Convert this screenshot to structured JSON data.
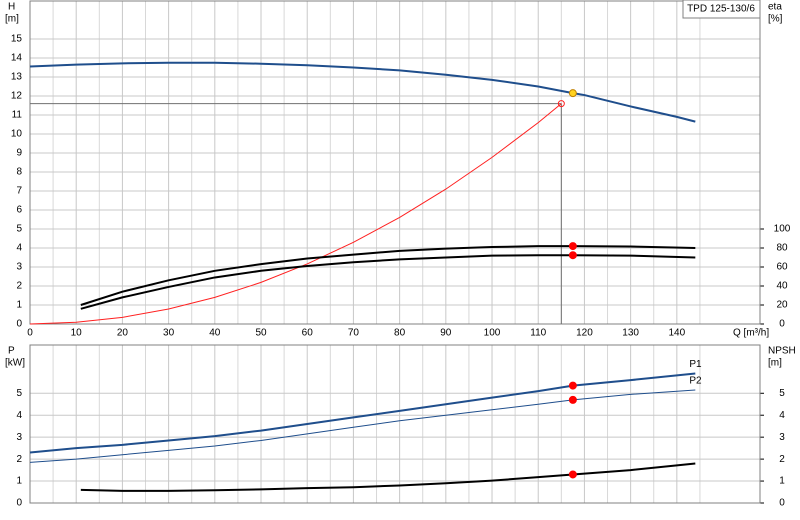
{
  "chart_data": [
    {
      "type": "line",
      "model": "TPD 125-130/6",
      "ylabel": "H",
      "yunit": "[m]",
      "y2label": "eta",
      "y2unit": "[%]",
      "xlabel": "Q [m³/h]",
      "xlim": [
        0,
        158
      ],
      "xticks": [
        0,
        10,
        20,
        30,
        40,
        50,
        60,
        70,
        80,
        90,
        100,
        110,
        120,
        130,
        140
      ],
      "show_xtick_labels": true,
      "ylim": [
        0,
        17
      ],
      "yticks": [
        0,
        1,
        2,
        3,
        4,
        5,
        6,
        7,
        8,
        9,
        10,
        11,
        12,
        13,
        14,
        15
      ],
      "y2lim": [
        0,
        340
      ],
      "y2ticks": [
        0,
        20,
        40,
        60,
        80,
        100
      ],
      "grid": true,
      "series": [
        {
          "color": "#1f4e8c",
          "style": "thick",
          "x": [
            0,
            10,
            20,
            30,
            40,
            50,
            60,
            70,
            80,
            90,
            100,
            110,
            117.5,
            120,
            130,
            140,
            144
          ],
          "values": [
            13.55,
            13.65,
            13.72,
            13.75,
            13.75,
            13.7,
            13.62,
            13.5,
            13.35,
            13.12,
            12.85,
            12.5,
            12.15,
            12.05,
            11.45,
            10.9,
            10.65
          ]
        },
        {
          "color": "#ff2020",
          "style": "thin",
          "x": [
            0,
            10,
            20,
            30,
            40,
            50,
            60,
            70,
            80,
            90,
            100,
            110,
            115
          ],
          "values": [
            0,
            0.09,
            0.35,
            0.79,
            1.4,
            2.19,
            3.16,
            4.3,
            5.61,
            7.1,
            8.77,
            10.6,
            11.6
          ]
        },
        {
          "color": "#000000",
          "style": "thick",
          "axis": "y2",
          "x": [
            11,
            20,
            30,
            40,
            50,
            60,
            70,
            80,
            90,
            100,
            110,
            117.5,
            130,
            144
          ],
          "values": [
            20,
            34,
            46,
            56,
            63,
            69,
            73,
            77,
            79.4,
            81,
            82,
            82,
            81.6,
            80
          ]
        },
        {
          "color": "#000000",
          "style": "thick",
          "axis": "y2",
          "x": [
            11,
            20,
            30,
            40,
            50,
            60,
            70,
            80,
            90,
            100,
            110,
            117.5,
            130,
            144
          ],
          "values": [
            16,
            28,
            39,
            49,
            56,
            61,
            65,
            68,
            70,
            72,
            72.4,
            72.4,
            72,
            70
          ]
        }
      ],
      "duty_point": {
        "x": 115,
        "y": 11.6
      },
      "markers": [
        {
          "x": 117.5,
          "y": 12.15,
          "color": "#ffd21f"
        },
        {
          "x": 117.5,
          "y": 82,
          "axis": "y2",
          "color": "#ff0000"
        },
        {
          "x": 117.5,
          "y": 72.4,
          "axis": "y2",
          "color": "#ff0000"
        }
      ]
    },
    {
      "type": "line",
      "ylabel": "P",
      "yunit": "[kW]",
      "y2label": "NPSH",
      "y2unit": "[m]",
      "xlim": [
        0,
        158
      ],
      "xticks": [
        0,
        10,
        20,
        30,
        40,
        50,
        60,
        70,
        80,
        90,
        100,
        110,
        120,
        130,
        140
      ],
      "show_xtick_labels": false,
      "ylim": [
        0,
        7.2
      ],
      "yticks": [
        0,
        1,
        2,
        3,
        4,
        5
      ],
      "y2lim": [
        0,
        7.2
      ],
      "y2ticks": [
        0,
        1,
        2,
        3,
        4,
        5
      ],
      "grid": true,
      "series": [
        {
          "name": "P1",
          "color": "#1f4e8c",
          "style": "thick",
          "x": [
            0,
            10,
            20,
            30,
            40,
            50,
            60,
            70,
            80,
            90,
            100,
            110,
            117.5,
            130,
            144
          ],
          "values": [
            2.3,
            2.5,
            2.65,
            2.85,
            3.05,
            3.3,
            3.6,
            3.9,
            4.2,
            4.5,
            4.8,
            5.1,
            5.35,
            5.6,
            5.9
          ]
        },
        {
          "name": "P2",
          "color": "#1f4e8c",
          "style": "thin",
          "x": [
            0,
            10,
            20,
            30,
            40,
            50,
            60,
            70,
            80,
            90,
            100,
            110,
            117.5,
            130,
            144
          ],
          "values": [
            1.85,
            2.0,
            2.2,
            2.4,
            2.6,
            2.85,
            3.15,
            3.45,
            3.75,
            4.0,
            4.25,
            4.5,
            4.7,
            4.95,
            5.15
          ]
        },
        {
          "color": "#000000",
          "style": "thick",
          "axis": "y2",
          "x": [
            11,
            20,
            30,
            40,
            50,
            60,
            70,
            80,
            90,
            100,
            110,
            117.5,
            130,
            144
          ],
          "values": [
            0.6,
            0.55,
            0.55,
            0.58,
            0.62,
            0.68,
            0.72,
            0.8,
            0.9,
            1.02,
            1.18,
            1.3,
            1.5,
            1.8
          ]
        }
      ],
      "markers": [
        {
          "x": 117.5,
          "y": 5.35,
          "color": "#ff0000"
        },
        {
          "x": 117.5,
          "y": 4.7,
          "color": "#ff0000"
        },
        {
          "x": 117.5,
          "y": 1.3,
          "axis": "y2",
          "color": "#ff0000"
        }
      ]
    }
  ]
}
